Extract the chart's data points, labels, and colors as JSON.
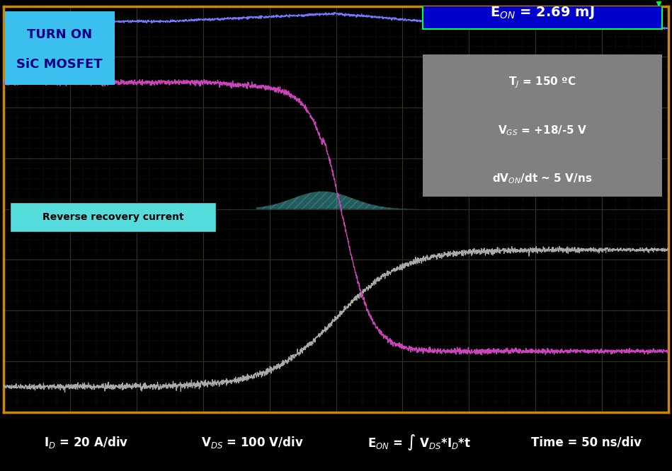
{
  "bg_color": "#000000",
  "plot_bg": "#000000",
  "border_color": "#CC8800",
  "grid_major_color": "#444422",
  "grid_minor_color": "#222211",
  "title_text1": "TURN ON",
  "title_text2": "SiC MOSFET",
  "title_bg": "#3BBFEF",
  "title_fg": "#000080",
  "eon_text": "E$_{ON}$ = 2.69 mJ",
  "eon_bg": "#0000CC",
  "eon_fg": "#FFFFFF",
  "info_bg": "#808080",
  "info_fg": "#FFFFFF",
  "info_lines": [
    "T$_J$ = 150 ºC",
    "V$_{GS}$ = +18/-5 V",
    "dV$_{ON}$/dt ~ 5 V/ns"
  ],
  "rrc_text": "Reverse recovery current",
  "rrc_bg": "#55DDDD",
  "rrc_fg": "#000000",
  "vds_color": "#CC44BB",
  "id_color": "#AAAAAA",
  "energy_color": "#7777FF",
  "rrc_fill_color": "#55CCCC",
  "green_marker_color": "#00FF44",
  "bottom_labels": [
    "I$_D$ = 20 A/div",
    "V$_{DS}$ = 100 V/div",
    "E$_{ON}$ = ∫ V$_{DS}$*I$_D$*t",
    "Time = 50 ns/div"
  ],
  "bottom_colors": [
    "#888888",
    "#CC0088",
    "#3333CC",
    "#009944"
  ],
  "bottom_fg": "#FFFFFF",
  "fig_width": 9.49,
  "fig_height": 6.66,
  "dpi": 100
}
